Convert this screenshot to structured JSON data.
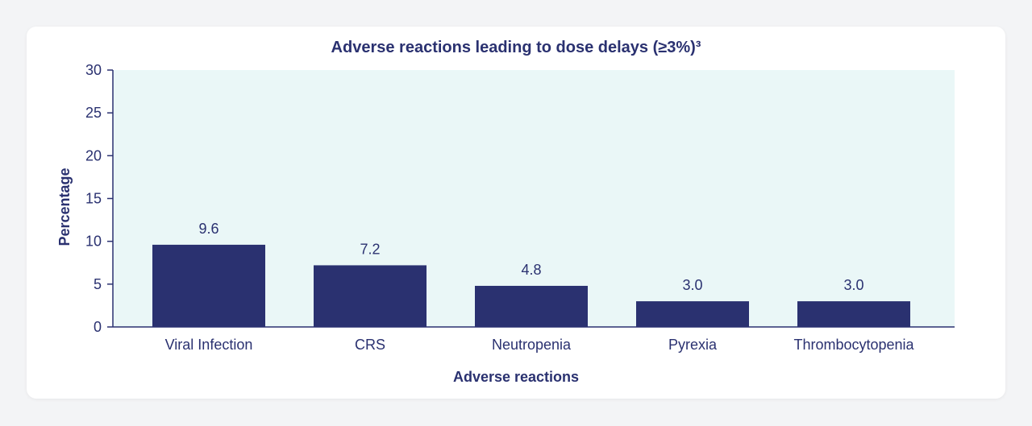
{
  "chart_data": {
    "type": "bar",
    "title": "Adverse reactions leading to dose delays (≥3%)³",
    "xlabel": "Adverse reactions",
    "ylabel": "Percentage",
    "categories": [
      "Viral Infection",
      "CRS",
      "Neutropenia",
      "Pyrexia",
      "Thrombocytopenia"
    ],
    "values": [
      9.6,
      7.2,
      4.8,
      3.0,
      3.0
    ],
    "value_labels": [
      "9.6",
      "7.2",
      "4.8",
      "3.0",
      "3.0"
    ],
    "ylim": [
      0,
      30
    ],
    "yticks": [
      0,
      5,
      10,
      15,
      20,
      25,
      30
    ],
    "grid": false,
    "colors": {
      "bar": "#2a3170",
      "plot_background": "#eaf7f7",
      "text": "#2a3170",
      "axis": "#2a3170"
    }
  }
}
